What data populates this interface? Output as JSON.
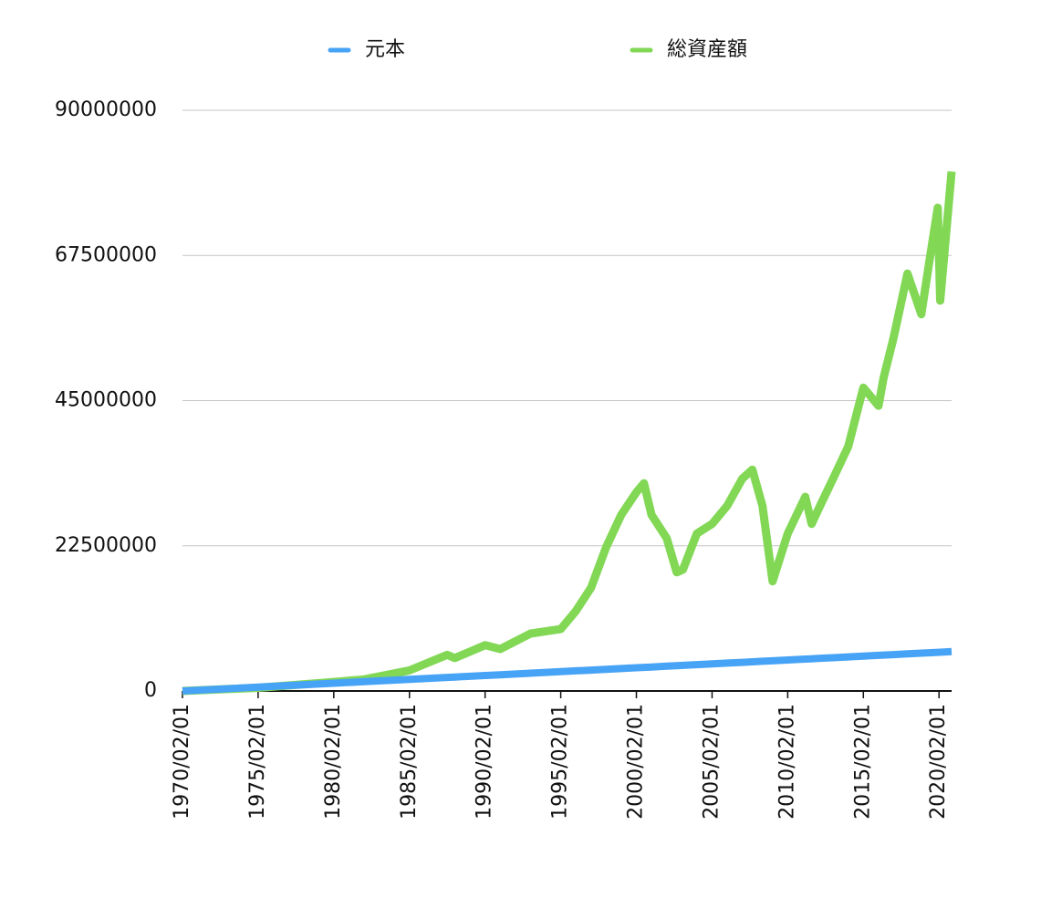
{
  "chart_data": {
    "type": "line",
    "x": [
      "1970/02/01",
      "1975/02/01",
      "1980/02/01",
      "1982/02/01",
      "1985/02/01",
      "1987/08/01",
      "1988/02/01",
      "1990/02/01",
      "1991/02/01",
      "1993/02/01",
      "1995/02/01",
      "1996/02/01",
      "1997/02/01",
      "1998/02/01",
      "1999/02/01",
      "2000/02/01",
      "2000/08/01",
      "2001/02/01",
      "2002/02/01",
      "2002/10/01",
      "2003/03/01",
      "2004/02/01",
      "2005/02/01",
      "2006/02/01",
      "2007/02/01",
      "2007/10/01",
      "2008/06/01",
      "2009/02/01",
      "2010/02/01",
      "2011/04/01",
      "2011/09/01",
      "2012/02/01",
      "2013/02/01",
      "2014/02/01",
      "2015/02/01",
      "2016/02/01",
      "2016/06/01",
      "2017/02/01",
      "2018/01/01",
      "2018/12/01",
      "2019/06/01",
      "2020/01/01",
      "2020/03/01",
      "2020/12/01"
    ],
    "series": [
      {
        "name": "元本",
        "color": "#47a3f5",
        "values": [
          0,
          600000,
          1200000,
          1440000,
          1800000,
          2100000,
          2160000,
          2400000,
          2520000,
          2760000,
          3000000,
          3120000,
          3240000,
          3360000,
          3480000,
          3600000,
          3660000,
          3720000,
          3840000,
          3920000,
          3970000,
          4080000,
          4200000,
          4320000,
          4440000,
          4520000,
          4600000,
          4680000,
          4800000,
          4940000,
          4990000,
          5040000,
          5160000,
          5280000,
          5400000,
          5520000,
          5560000,
          5640000,
          5750000,
          5860000,
          5920000,
          5990000,
          6010000,
          6100000
        ]
      },
      {
        "name": "総資産額",
        "color": "#82d855",
        "values": [
          0,
          500000,
          1400000,
          1800000,
          3200000,
          5600000,
          5100000,
          7100000,
          6500000,
          8900000,
          9600000,
          12400000,
          16000000,
          22300000,
          27300000,
          30800000,
          32200000,
          27300000,
          23700000,
          18400000,
          18800000,
          24400000,
          25900000,
          28700000,
          32900000,
          34300000,
          28700000,
          17000000,
          24400000,
          30100000,
          25900000,
          28000000,
          32900000,
          37900000,
          47000000,
          44200000,
          48500000,
          54800000,
          64700000,
          58400000,
          66100000,
          74900000,
          60500000,
          80500000
        ]
      }
    ],
    "xlim": [
      "1970/02/01",
      "2020/12/01"
    ],
    "xticks": [
      "1970/02/01",
      "1975/02/01",
      "1980/02/01",
      "1985/02/01",
      "1990/02/01",
      "1995/02/01",
      "2000/02/01",
      "2005/02/01",
      "2010/02/01",
      "2015/02/01",
      "2020/02/01"
    ],
    "ylim": [
      0,
      90000000
    ],
    "yticks": [
      0,
      22500000,
      45000000,
      67500000,
      90000000
    ],
    "grid": true
  }
}
